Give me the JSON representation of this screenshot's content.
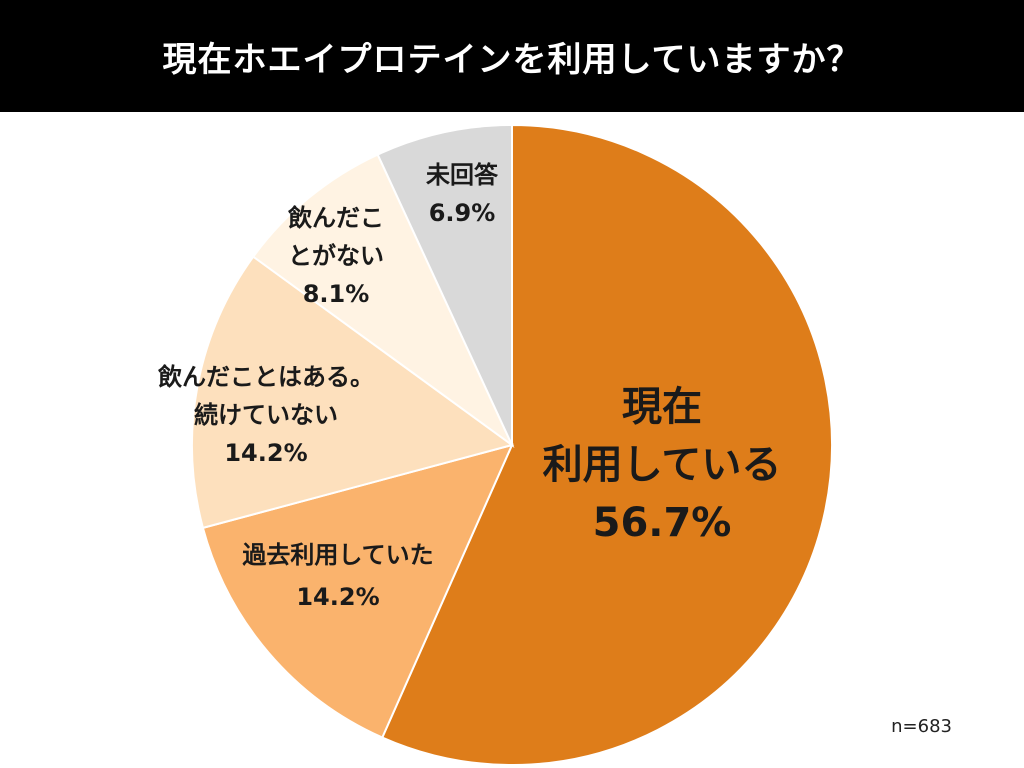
{
  "title": "現在ホエイプロテインを利用していますか？",
  "sample_size": "n=683",
  "chart_data": {
    "type": "pie",
    "title": "現在ホエイプロテインを利用していますか？",
    "start_angle_deg": 0,
    "direction": "clockwise",
    "slices": [
      {
        "label": "現在利用している",
        "label_lines": [
          "現在",
          "利用している",
          "56.7%"
        ],
        "value": 56.7,
        "color": "#de7d1a"
      },
      {
        "label": "過去利用していた",
        "label_lines": [
          "過去利用していた",
          "14.2%"
        ],
        "value": 14.2,
        "color": "#fab36d"
      },
      {
        "label": "飲んだことはある。続けていない",
        "label_lines": [
          "飲んだことはある。",
          "続けていない",
          "14.2%"
        ],
        "value": 14.2,
        "color": "#fde0bd"
      },
      {
        "label": "飲んだことがない",
        "label_lines": [
          "飲んだこ",
          "とがない",
          "8.1%"
        ],
        "value": 8.1,
        "color": "#fff3e3"
      },
      {
        "label": "未回答",
        "label_lines": [
          "未回答",
          "6.9%"
        ],
        "value": 6.9,
        "color": "#d9d9d9"
      }
    ]
  }
}
